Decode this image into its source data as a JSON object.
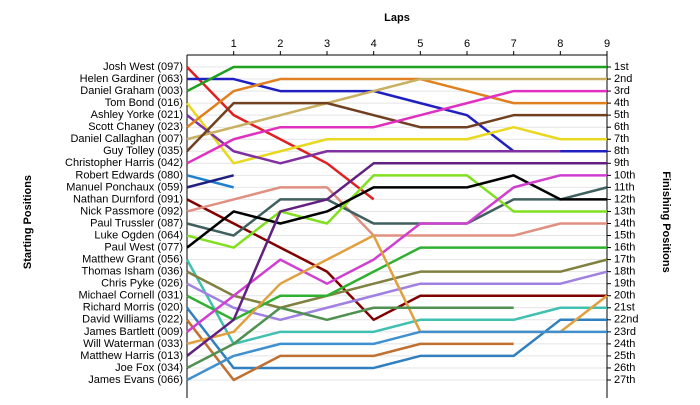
{
  "chart_data": {
    "type": "lap",
    "title": "Laps",
    "ylabel": "Starting Positions",
    "y2label": "Finishing Positions",
    "x": [
      0,
      1,
      2,
      3,
      4,
      5,
      6,
      7,
      8,
      9
    ],
    "xlim": [
      0,
      9
    ],
    "xticks": [
      1,
      2,
      3,
      4,
      5,
      6,
      7,
      8,
      9
    ],
    "ylim": [
      1,
      27
    ],
    "grid": true,
    "yticks": [
      {
        "value": 1,
        "label": "1st"
      },
      {
        "value": 2,
        "label": "2nd"
      },
      {
        "value": 3,
        "label": "3rd"
      },
      {
        "value": 4,
        "label": "4th"
      },
      {
        "value": 5,
        "label": "5th"
      },
      {
        "value": 6,
        "label": "6th"
      },
      {
        "value": 7,
        "label": "7th"
      },
      {
        "value": 8,
        "label": "8th"
      },
      {
        "value": 9,
        "label": "9th"
      },
      {
        "value": 10,
        "label": "10th"
      },
      {
        "value": 11,
        "label": "11th"
      },
      {
        "value": 12,
        "label": "12th"
      },
      {
        "value": 13,
        "label": "13th"
      },
      {
        "value": 14,
        "label": "14th"
      },
      {
        "value": 15,
        "label": "15th"
      },
      {
        "value": 16,
        "label": "16th"
      },
      {
        "value": 17,
        "label": "17th"
      },
      {
        "value": 18,
        "label": "18th"
      },
      {
        "value": 19,
        "label": "19th"
      },
      {
        "value": 20,
        "label": "20th"
      },
      {
        "value": 21,
        "label": "21st"
      },
      {
        "value": 22,
        "label": "22nd"
      },
      {
        "value": 23,
        "label": "23rd"
      },
      {
        "value": 24,
        "label": "24th"
      },
      {
        "value": 25,
        "label": "25th"
      },
      {
        "value": 26,
        "label": "26th"
      },
      {
        "value": 27,
        "label": "27th"
      }
    ],
    "series": [
      {
        "name": "Josh West (097)",
        "color": "#e02020",
        "values": [
          1,
          5,
          7,
          9,
          12,
          null,
          null,
          null,
          null,
          null
        ]
      },
      {
        "name": "Helen Gardiner (063)",
        "color": "#2020c0",
        "values": [
          2,
          2,
          3,
          3,
          3,
          4,
          5,
          8,
          8,
          8
        ]
      },
      {
        "name": "Daniel Graham (003)",
        "color": "#20a020",
        "values": [
          3,
          1,
          1,
          1,
          1,
          1,
          1,
          1,
          1,
          1
        ]
      },
      {
        "name": "Tom Bond (016)",
        "color": "#e8d820",
        "values": [
          4,
          9,
          8,
          7,
          7,
          7,
          7,
          6,
          7,
          7
        ]
      },
      {
        "name": "Ashley Yorke (021)",
        "color": "#8030a0",
        "values": [
          5,
          8,
          9,
          8,
          8,
          8,
          8,
          8,
          8,
          null
        ]
      },
      {
        "name": "Scott Chaney (023)",
        "color": "#e08020",
        "values": [
          6,
          3,
          2,
          2,
          2,
          2,
          3,
          4,
          4,
          4
        ]
      },
      {
        "name": "Daniel Callaghan (007)",
        "color": "#c8b060",
        "values": [
          7,
          6,
          5,
          4,
          3,
          2,
          2,
          2,
          2,
          2
        ]
      },
      {
        "name": "Guy Tolley (035)",
        "color": "#704020",
        "values": [
          8,
          4,
          4,
          4,
          5,
          6,
          6,
          5,
          5,
          5
        ]
      },
      {
        "name": "Christopher Harris (042)",
        "color": "#e030c0",
        "values": [
          9,
          7,
          6,
          6,
          6,
          5,
          4,
          3,
          3,
          3
        ]
      },
      {
        "name": "Robert Edwards (080)",
        "color": "#2080d0",
        "values": [
          10,
          11,
          null,
          null,
          null,
          null,
          null,
          null,
          null,
          null
        ]
      },
      {
        "name": "Manuel Ponchaux (059)",
        "color": "#202080",
        "values": [
          11,
          10,
          null,
          null,
          null,
          null,
          null,
          null,
          null,
          null
        ]
      },
      {
        "name": "Nathan Durnford (091)",
        "color": "#800000",
        "values": [
          12,
          14,
          16,
          18,
          22,
          20,
          20,
          20,
          20,
          20
        ]
      },
      {
        "name": "Nick Passmore (092)",
        "color": "#e09080",
        "values": [
          13,
          12,
          11,
          11,
          15,
          15,
          15,
          15,
          14,
          14
        ]
      },
      {
        "name": "Paul Trussler (087)",
        "color": "#406060",
        "values": [
          14,
          15,
          12,
          12,
          14,
          14,
          14,
          12,
          12,
          11
        ]
      },
      {
        "name": "Luke Ogden (064)",
        "color": "#80e020",
        "values": [
          15,
          16,
          13,
          14,
          10,
          10,
          10,
          13,
          13,
          13
        ]
      },
      {
        "name": "Paul West (077)",
        "color": "#000000",
        "values": [
          16,
          13,
          14,
          13,
          11,
          11,
          11,
          10,
          12,
          12
        ]
      },
      {
        "name": "Matthew Grant (056)",
        "color": "#40c0b0",
        "values": [
          17,
          24,
          23,
          23,
          23,
          22,
          22,
          22,
          21,
          21
        ]
      },
      {
        "name": "Thomas Isham (036)",
        "color": "#808040",
        "values": [
          18,
          20,
          21,
          20,
          19,
          18,
          18,
          18,
          18,
          17
        ]
      },
      {
        "name": "Chris Pyke (026)",
        "color": "#a080e0",
        "values": [
          19,
          21,
          22,
          21,
          20,
          19,
          19,
          19,
          19,
          18
        ]
      },
      {
        "name": "Michael Cornell (031)",
        "color": "#30b030",
        "values": [
          20,
          22,
          20,
          20,
          18,
          16,
          16,
          16,
          16,
          16
        ]
      },
      {
        "name": "Richard Morris (020)",
        "color": "#3080c0",
        "values": [
          21,
          26,
          26,
          26,
          26,
          25,
          25,
          25,
          22,
          22
        ]
      },
      {
        "name": "David Williams (022)",
        "color": "#c07030",
        "values": [
          22,
          27,
          25,
          25,
          25,
          24,
          24,
          24,
          null,
          null
        ]
      },
      {
        "name": "James Bartlett (009)",
        "color": "#d040d0",
        "values": [
          23,
          20,
          17,
          19,
          17,
          14,
          14,
          11,
          10,
          10
        ]
      },
      {
        "name": "Will Waterman (033)",
        "color": "#e0a040",
        "values": [
          24,
          23,
          19,
          17,
          15,
          23,
          23,
          23,
          23,
          20
        ]
      },
      {
        "name": "Matthew Harris (013)",
        "color": "#602080",
        "values": [
          25,
          22,
          13,
          12,
          9,
          9,
          9,
          9,
          9,
          9
        ]
      },
      {
        "name": "Joe Fox (034)",
        "color": "#509050",
        "values": [
          26,
          24,
          21,
          22,
          21,
          21,
          21,
          21,
          null,
          null
        ]
      },
      {
        "name": "James Evans (066)",
        "color": "#4090d0",
        "values": [
          27,
          25,
          24,
          24,
          24,
          23,
          23,
          23,
          23,
          23
        ]
      }
    ]
  }
}
